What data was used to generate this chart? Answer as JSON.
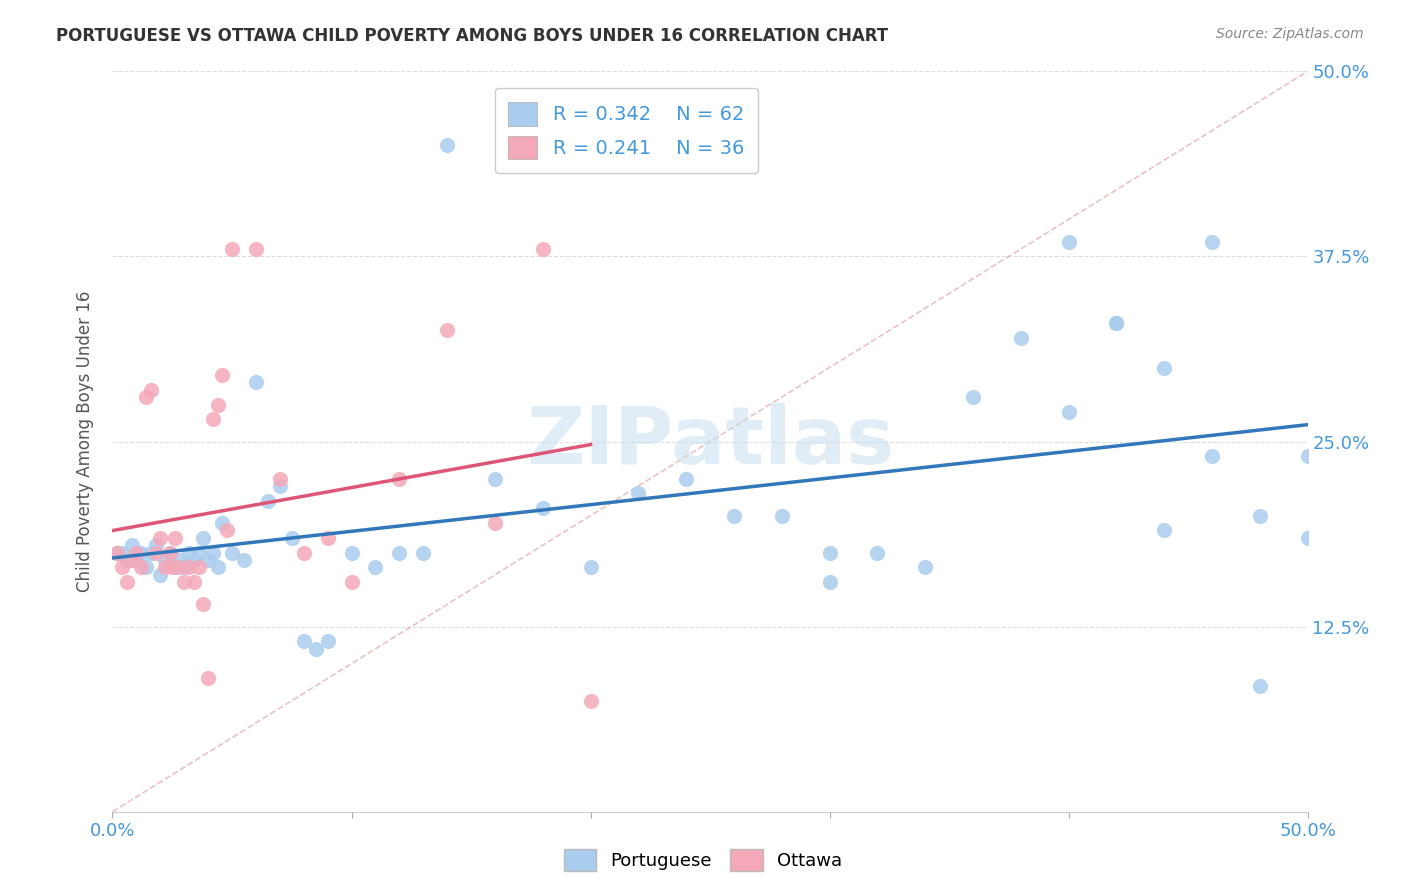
{
  "title": "PORTUGUESE VS OTTAWA CHILD POVERTY AMONG BOYS UNDER 16 CORRELATION CHART",
  "source": "Source: ZipAtlas.com",
  "ylabel": "Child Poverty Among Boys Under 16",
  "xlim": [
    0.0,
    0.5
  ],
  "ylim": [
    0.0,
    0.5
  ],
  "ytick_positions": [
    0.125,
    0.25,
    0.375,
    0.5
  ],
  "ytick_labels": [
    "12.5%",
    "25.0%",
    "37.5%",
    "50.0%"
  ],
  "xtick_positions": [
    0.0,
    0.1,
    0.2,
    0.3,
    0.4,
    0.5
  ],
  "xtick_labels": [
    "0.0%",
    "",
    "",
    "",
    "",
    "50.0%"
  ],
  "portuguese_color": "#aaccee",
  "ottawa_color": "#f5a8b8",
  "trendline_portuguese_color": "#3377bb",
  "trendline_ottawa_color": "#dd5577",
  "tick_label_color": "#4499dd",
  "watermark_text": "ZIPatlas",
  "watermark_color": "#cce0f0",
  "legend_R1": "R = 0.342",
  "legend_N1": "N = 62",
  "legend_R2": "R = 0.241",
  "legend_N2": "N = 36",
  "portuguese_x": [
    0.002,
    0.004,
    0.006,
    0.008,
    0.01,
    0.012,
    0.014,
    0.016,
    0.018,
    0.02,
    0.022,
    0.024,
    0.026,
    0.028,
    0.03,
    0.032,
    0.034,
    0.036,
    0.038,
    0.04,
    0.042,
    0.044,
    0.046,
    0.05,
    0.055,
    0.06,
    0.065,
    0.07,
    0.075,
    0.08,
    0.085,
    0.09,
    0.1,
    0.11,
    0.12,
    0.13,
    0.14,
    0.16,
    0.18,
    0.2,
    0.22,
    0.24,
    0.26,
    0.28,
    0.3,
    0.32,
    0.34,
    0.36,
    0.38,
    0.4,
    0.42,
    0.44,
    0.46,
    0.48,
    0.5,
    0.48,
    0.5,
    0.46,
    0.44,
    0.42,
    0.4,
    0.3
  ],
  "portuguese_y": [
    0.175,
    0.175,
    0.17,
    0.18,
    0.17,
    0.175,
    0.165,
    0.175,
    0.18,
    0.16,
    0.17,
    0.175,
    0.165,
    0.17,
    0.165,
    0.175,
    0.17,
    0.175,
    0.185,
    0.17,
    0.175,
    0.165,
    0.195,
    0.175,
    0.17,
    0.29,
    0.21,
    0.22,
    0.185,
    0.115,
    0.11,
    0.115,
    0.175,
    0.165,
    0.175,
    0.175,
    0.45,
    0.225,
    0.205,
    0.165,
    0.215,
    0.225,
    0.2,
    0.2,
    0.155,
    0.175,
    0.165,
    0.28,
    0.32,
    0.27,
    0.33,
    0.3,
    0.24,
    0.2,
    0.24,
    0.085,
    0.185,
    0.385,
    0.19,
    0.33,
    0.385,
    0.175
  ],
  "ottawa_x": [
    0.002,
    0.004,
    0.006,
    0.008,
    0.01,
    0.012,
    0.014,
    0.016,
    0.018,
    0.02,
    0.022,
    0.024,
    0.025,
    0.026,
    0.028,
    0.03,
    0.032,
    0.034,
    0.036,
    0.038,
    0.04,
    0.042,
    0.044,
    0.046,
    0.048,
    0.05,
    0.06,
    0.07,
    0.08,
    0.09,
    0.1,
    0.12,
    0.14,
    0.16,
    0.18,
    0.2
  ],
  "ottawa_y": [
    0.175,
    0.165,
    0.155,
    0.17,
    0.175,
    0.165,
    0.28,
    0.285,
    0.175,
    0.185,
    0.165,
    0.175,
    0.165,
    0.185,
    0.165,
    0.155,
    0.165,
    0.155,
    0.165,
    0.14,
    0.09,
    0.265,
    0.275,
    0.295,
    0.19,
    0.38,
    0.38,
    0.225,
    0.175,
    0.185,
    0.155,
    0.225,
    0.325,
    0.195,
    0.38,
    0.075
  ]
}
